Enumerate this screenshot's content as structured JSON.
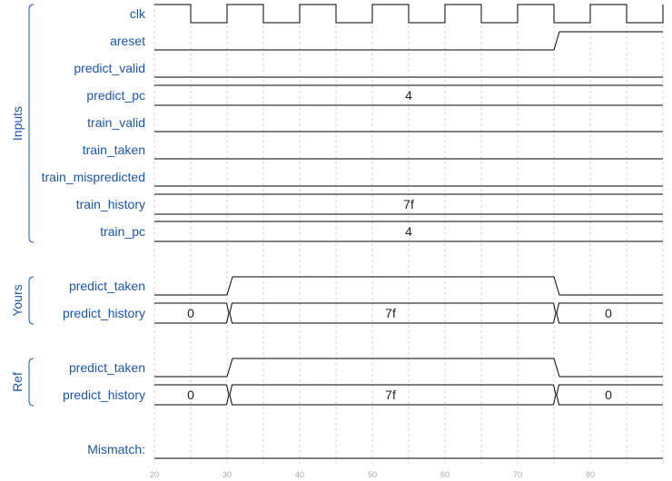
{
  "timeline": {
    "t_min": 20,
    "t_max": 90,
    "ticks": [
      20,
      30,
      40,
      50,
      60,
      70,
      80
    ]
  },
  "colors": {
    "label": "#1a56b0",
    "wave": "#000000",
    "grid": "#d4d4d4"
  },
  "groups": [
    {
      "name": "Inputs",
      "first_row": 0,
      "last_row": 8
    },
    {
      "name": "Yours",
      "first_row": 9,
      "last_row": 10
    },
    {
      "name": "Ref",
      "first_row": 11,
      "last_row": 12
    }
  ],
  "signals": [
    {
      "name": "clk",
      "kind": "clock",
      "first_edge": 25,
      "half_period": 5
    },
    {
      "name": "areset",
      "kind": "bit",
      "initial": 0,
      "changes": [
        [
          75,
          1
        ]
      ]
    },
    {
      "name": "predict_valid",
      "kind": "bit",
      "initial": 0,
      "changes": []
    },
    {
      "name": "predict_pc",
      "kind": "bus",
      "segments": [
        [
          20,
          "4"
        ]
      ]
    },
    {
      "name": "train_valid",
      "kind": "bit",
      "initial": 0,
      "changes": []
    },
    {
      "name": "train_taken",
      "kind": "bit",
      "initial": 0,
      "changes": []
    },
    {
      "name": "train_mispredicted",
      "kind": "bit",
      "initial": 0,
      "changes": []
    },
    {
      "name": "train_history",
      "kind": "bus",
      "segments": [
        [
          20,
          "7f"
        ]
      ]
    },
    {
      "name": "train_pc",
      "kind": "bus",
      "segments": [
        [
          20,
          "4"
        ]
      ]
    },
    {
      "name": "predict_taken",
      "kind": "bit",
      "initial": 0,
      "changes": [
        [
          30,
          1
        ],
        [
          75,
          0
        ]
      ]
    },
    {
      "name": "predict_history",
      "kind": "bus",
      "segments": [
        [
          20,
          "0"
        ],
        [
          30,
          "7f"
        ],
        [
          75,
          "0"
        ]
      ]
    },
    {
      "name": "predict_taken",
      "kind": "bit",
      "initial": 0,
      "changes": [
        [
          30,
          1
        ],
        [
          75,
          0
        ]
      ]
    },
    {
      "name": "predict_history",
      "kind": "bus",
      "segments": [
        [
          20,
          "0"
        ],
        [
          30,
          "7f"
        ],
        [
          75,
          "0"
        ]
      ]
    },
    {
      "name": "Mismatch:",
      "kind": "bit",
      "initial": 0,
      "changes": []
    }
  ]
}
